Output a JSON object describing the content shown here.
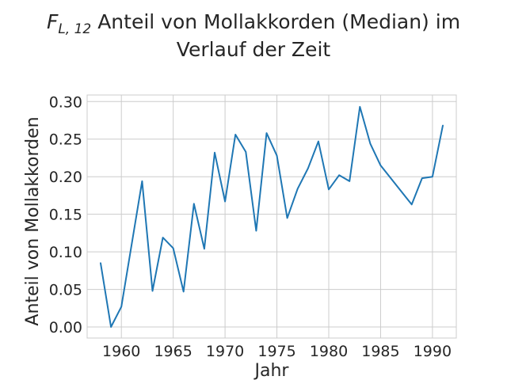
{
  "chart_data": {
    "type": "line",
    "title": {
      "symbol": "F",
      "subscript": "L, 12",
      "line1": "Anteil von Mollakkorden (Median) im",
      "line2": "Verlauf der Zeit"
    },
    "xlabel": "Jahr",
    "ylabel": "Anteil von Mollakkorden",
    "xlim": [
      1956.7,
      1992.3
    ],
    "ylim": [
      -0.0147,
      0.3087
    ],
    "x_ticks": [
      1960,
      1965,
      1970,
      1975,
      1980,
      1985,
      1990
    ],
    "y_ticks": [
      "0.00",
      "0.05",
      "0.10",
      "0.15",
      "0.20",
      "0.25",
      "0.30"
    ],
    "grid": true,
    "series": [
      {
        "color": "#1f77b4",
        "x": [
          1958,
          1959,
          1960,
          1962,
          1963,
          1964,
          1965,
          1966,
          1967,
          1968,
          1969,
          1970,
          1971,
          1972,
          1973,
          1974,
          1975,
          1976,
          1977,
          1978,
          1979,
          1980,
          1981,
          1982,
          1983,
          1984,
          1985,
          1988,
          1989,
          1990,
          1991
        ],
        "y": [
          0.085,
          0.0,
          0.027,
          0.194,
          0.048,
          0.119,
          0.105,
          0.047,
          0.164,
          0.104,
          0.232,
          0.167,
          0.256,
          0.233,
          0.128,
          0.258,
          0.228,
          0.145,
          0.184,
          0.211,
          0.247,
          0.183,
          0.202,
          0.194,
          0.293,
          0.244,
          0.215,
          0.163,
          0.198,
          0.2,
          0.268
        ]
      }
    ]
  }
}
